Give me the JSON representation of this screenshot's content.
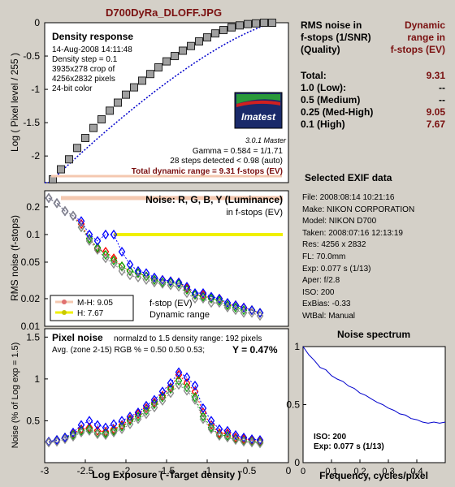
{
  "title": "D700DyRa_DLOFF.JPG",
  "colors": {
    "background": "#d4d0c8",
    "panel": "#ffffff",
    "maroon": "#7a1010",
    "density_marker": "#a0a0a0",
    "red": "#ff0000",
    "green": "#00aa00",
    "blue": "#0000ff",
    "gray": "#888888",
    "mh_line": "#f4c8b0",
    "h_line": "#f0f000"
  },
  "density_panel": {
    "title": "Density response",
    "info": [
      "14-Aug-2008 14:11:48",
      "Density step = 0.1",
      "3935x278 crop of",
      "4256x2832 pixels",
      "24-bit color"
    ],
    "gamma": "Gamma = 0.584 = 1/1.71",
    "steps": "28 steps detected < 0.98 (auto)",
    "total_dr": "Total dynamic range = 9.31 f-stops (EV)",
    "logo_text": "Imatest",
    "version": "3.0.1  Master",
    "ylabel": "Log ( Pixel level / 255 )",
    "yticks": [
      "0",
      "-0.5",
      "-1",
      "-1.5",
      "-2"
    ]
  },
  "noise_panel": {
    "title": "Noise: R, G, B, Y (Luminance)",
    "subtitle": "in f-stops (EV)",
    "ylabel": "RMS noise (f-stops)",
    "yticks": [
      "0.2",
      "0.1",
      "0.05",
      "0.02",
      "0.01"
    ],
    "legend": [
      {
        "label": "M-H: 9.05"
      },
      {
        "label": "H:    7.67"
      }
    ],
    "legend_text_1": "f-stop (EV)",
    "legend_text_2": "Dynamic range"
  },
  "pixel_panel": {
    "title": "Pixel noise",
    "norm": "normalzd to 1.5 density range: 192 pixels",
    "avg": "Avg. (zone 2-15) RGB % = 0.50  0.50  0.53;",
    "y_val": "Y = 0.47%",
    "ylabel": "Noise (% of Log exp = 1.5)",
    "yticks": [
      "0.5",
      "1",
      "1.5"
    ],
    "xlabel": "Log Exposure ( -Target density )",
    "xticks": [
      "-3",
      "-2.5",
      "-2",
      "-1.5",
      "-1",
      "-0.5",
      "0"
    ]
  },
  "rms_table": {
    "h1_left": "RMS noise in",
    "h2_left": "f-stops (1/SNR)",
    "h3_left": "(Quality)",
    "h1_right": "Dynamic",
    "h2_right": "range in",
    "h3_right": "f-stops (EV)",
    "rows": [
      {
        "label": "Total:",
        "value": "9.31"
      },
      {
        "label": "1.0   (Low):",
        "value": "--"
      },
      {
        "label": "0.5   (Medium)",
        "value": "--"
      },
      {
        "label": "0.25 (Med-High)",
        "value": "9.05"
      },
      {
        "label": "0.1   (High)",
        "value": "7.67"
      }
    ]
  },
  "exif": {
    "title": "Selected EXIF data",
    "lines": [
      "File:  2008:08:14 10:21:16",
      "Make:  NIKON CORPORATION",
      "Model: NIKON D700",
      "Taken: 2008:07:16 12:13:19",
      "Res:    4256 x 2832",
      "FL:  70.0mm",
      "Exp:   0.077 s  (1/13)",
      "Aper:  f/2.8",
      "ISO:   200",
      "ExBias:  -0.33",
      "WtBal:  Manual"
    ]
  },
  "spectrum": {
    "title": "Noise spectrum",
    "xlabel": "Frequency, cycles/pixel",
    "xticks": [
      "0",
      "0.1",
      "0.2",
      "0.3",
      "0.4"
    ],
    "yticks": [
      "0",
      "0.5",
      "1"
    ],
    "iso": "ISO:   200",
    "exp": "Exp:   0.077 s   (1/13)"
  },
  "chart_data": [
    {
      "type": "scatter",
      "title": "Density response",
      "ylabel": "Log ( Pixel level / 255 )",
      "x": [
        -2.9,
        -2.8,
        -2.7,
        -2.6,
        -2.5,
        -2.4,
        -2.3,
        -2.2,
        -2.1,
        -2.0,
        -1.9,
        -1.8,
        -1.7,
        -1.6,
        -1.5,
        -1.4,
        -1.3,
        -1.2,
        -1.1,
        -1.0,
        -0.9,
        -0.8,
        -0.7,
        -0.6,
        -0.5,
        -0.4,
        -0.3,
        -0.2
      ],
      "y": [
        -2.35,
        -2.2,
        -2.05,
        -1.88,
        -1.73,
        -1.58,
        -1.45,
        -1.32,
        -1.2,
        -1.08,
        -0.97,
        -0.87,
        -0.77,
        -0.67,
        -0.58,
        -0.5,
        -0.42,
        -0.35,
        -0.28,
        -0.22,
        -0.16,
        -0.11,
        -0.07,
        -0.04,
        -0.02,
        -0.01,
        0,
        0
      ],
      "xlim": [
        -3,
        0
      ],
      "ylim": [
        -2.4,
        0
      ]
    },
    {
      "type": "scatter",
      "title": "Noise: R, G, B, Y (Luminance)",
      "ylabel": "RMS noise (f-stops)",
      "ylim": [
        0.01,
        0.3
      ],
      "xlim": [
        -3,
        0
      ],
      "x": [
        -2.95,
        -2.85,
        -2.75,
        -2.65,
        -2.55,
        -2.45,
        -2.35,
        -2.25,
        -2.15,
        -2.05,
        -1.95,
        -1.85,
        -1.75,
        -1.65,
        -1.55,
        -1.45,
        -1.35,
        -1.25,
        -1.15,
        -1.05,
        -0.95,
        -0.85,
        -0.75,
        -0.65,
        -0.55,
        -0.45,
        -0.35
      ],
      "series": [
        {
          "values": [
            0.25,
            0.22,
            0.18,
            0.16,
            0.13,
            0.09,
            0.07,
            0.065,
            0.055,
            0.045,
            0.04,
            0.038,
            0.035,
            0.032,
            0.032,
            0.031,
            0.03,
            0.026,
            0.022,
            0.022,
            0.02,
            0.02,
            0.017,
            0.017,
            0.016,
            0.015,
            0.014
          ]
        },
        {
          "values": [
            0.25,
            0.22,
            0.18,
            0.16,
            0.12,
            0.09,
            0.072,
            0.06,
            0.052,
            0.045,
            0.04,
            0.038,
            0.035,
            0.032,
            0.03,
            0.03,
            0.029,
            0.025,
            0.022,
            0.021,
            0.02,
            0.019,
            0.017,
            0.016,
            0.015,
            0.015,
            0.014
          ]
        },
        {
          "values": [
            0.25,
            0.22,
            0.18,
            0.16,
            0.14,
            0.1,
            0.085,
            0.1,
            0.1,
            0.065,
            0.047,
            0.04,
            0.038,
            0.034,
            0.032,
            0.031,
            0.03,
            0.027,
            0.023,
            0.023,
            0.021,
            0.02,
            0.018,
            0.017,
            0.016,
            0.015,
            0.014
          ]
        },
        {
          "values": [
            0.25,
            0.22,
            0.18,
            0.16,
            0.12,
            0.085,
            0.068,
            0.055,
            0.048,
            0.04,
            0.036,
            0.034,
            0.032,
            0.03,
            0.029,
            0.028,
            0.027,
            0.023,
            0.02,
            0.02,
            0.018,
            0.018,
            0.016,
            0.015,
            0.014,
            0.014,
            0.013
          ]
        }
      ]
    },
    {
      "type": "scatter",
      "title": "Pixel noise",
      "xlabel": "Log Exposure ( -Target density )",
      "ylabel": "Noise (% of Log exp = 1.5)",
      "xlim": [
        -3,
        0
      ],
      "ylim": [
        0,
        1.6
      ],
      "x": [
        -2.95,
        -2.85,
        -2.75,
        -2.65,
        -2.55,
        -2.45,
        -2.35,
        -2.25,
        -2.15,
        -2.05,
        -1.95,
        -1.85,
        -1.75,
        -1.65,
        -1.55,
        -1.45,
        -1.35,
        -1.25,
        -1.15,
        -1.05,
        -0.95,
        -0.85,
        -0.75,
        -0.65,
        -0.55,
        -0.45,
        -0.35
      ],
      "series": [
        {
          "values": [
            0.25,
            0.27,
            0.3,
            0.35,
            0.4,
            0.42,
            0.38,
            0.37,
            0.4,
            0.45,
            0.52,
            0.58,
            0.65,
            0.72,
            0.8,
            0.9,
            1.05,
            0.95,
            0.85,
            0.6,
            0.45,
            0.35,
            0.35,
            0.3,
            0.28,
            0.27,
            0.25
          ]
        },
        {
          "values": [
            0.25,
            0.27,
            0.3,
            0.33,
            0.38,
            0.4,
            0.35,
            0.35,
            0.38,
            0.43,
            0.5,
            0.55,
            0.62,
            0.7,
            0.78,
            0.88,
            0.98,
            0.9,
            0.78,
            0.55,
            0.42,
            0.33,
            0.32,
            0.28,
            0.26,
            0.25,
            0.24
          ]
        },
        {
          "values": [
            0.25,
            0.27,
            0.3,
            0.36,
            0.45,
            0.5,
            0.45,
            0.42,
            0.46,
            0.5,
            0.55,
            0.6,
            0.68,
            0.75,
            0.85,
            0.95,
            1.08,
            1.02,
            0.92,
            0.65,
            0.5,
            0.4,
            0.38,
            0.33,
            0.3,
            0.28,
            0.27
          ]
        },
        {
          "values": [
            0.24,
            0.25,
            0.28,
            0.31,
            0.36,
            0.38,
            0.34,
            0.33,
            0.36,
            0.4,
            0.46,
            0.52,
            0.58,
            0.66,
            0.74,
            0.83,
            0.93,
            0.86,
            0.75,
            0.52,
            0.4,
            0.32,
            0.3,
            0.27,
            0.25,
            0.24,
            0.23
          ]
        }
      ]
    },
    {
      "type": "line",
      "title": "Noise spectrum",
      "xlabel": "Frequency, cycles/pixel",
      "xlim": [
        0,
        0.5
      ],
      "ylim": [
        0,
        1
      ],
      "x": [
        0,
        0.02,
        0.04,
        0.06,
        0.08,
        0.1,
        0.12,
        0.14,
        0.16,
        0.18,
        0.2,
        0.22,
        0.24,
        0.26,
        0.28,
        0.3,
        0.32,
        0.34,
        0.36,
        0.38,
        0.4,
        0.42,
        0.44,
        0.46,
        0.48,
        0.5
      ],
      "y": [
        1,
        0.93,
        0.88,
        0.82,
        0.8,
        0.75,
        0.72,
        0.7,
        0.66,
        0.64,
        0.6,
        0.58,
        0.55,
        0.52,
        0.5,
        0.47,
        0.45,
        0.42,
        0.41,
        0.38,
        0.37,
        0.35,
        0.34,
        0.35,
        0.34,
        0.35
      ]
    }
  ]
}
